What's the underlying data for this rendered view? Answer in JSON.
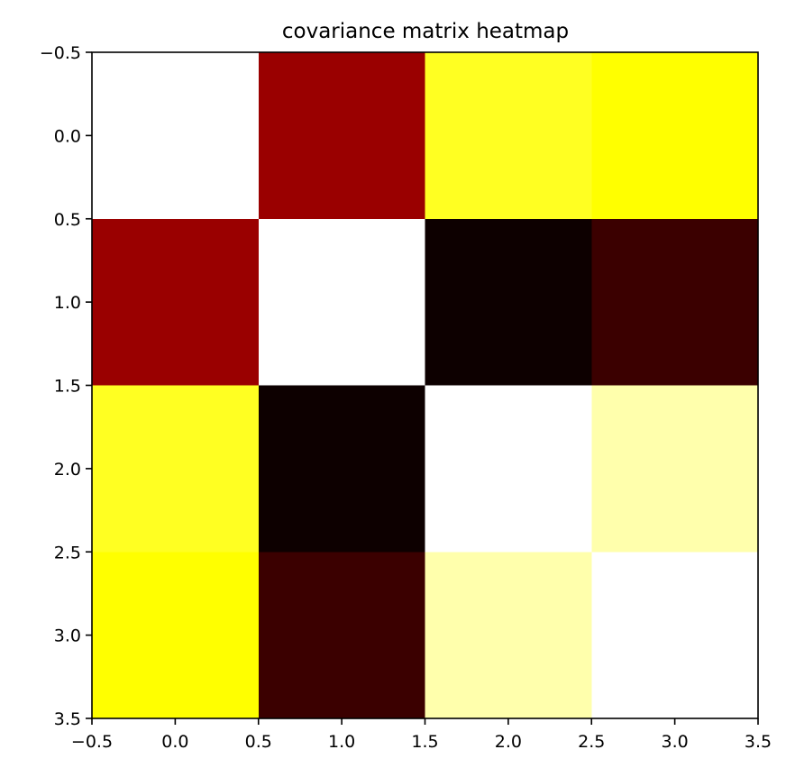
{
  "chart_data": {
    "type": "heatmap",
    "title": "covariance matrix heatmap",
    "xlabel": "",
    "ylabel": "",
    "colormap": "hot",
    "xlim": [
      -0.5,
      3.5
    ],
    "ylim": [
      3.5,
      -0.5
    ],
    "x_ticks": [
      "−0.5",
      "0.0",
      "0.5",
      "1.0",
      "1.5",
      "2.0",
      "2.5",
      "3.0",
      "3.5"
    ],
    "y_ticks": [
      "−0.5",
      "0.0",
      "0.5",
      "1.0",
      "1.5",
      "2.0",
      "2.5",
      "3.0",
      "3.5"
    ],
    "grid": false,
    "rows": [
      {
        "row": 0,
        "values": [
          1.0,
          0.25,
          0.7,
          0.68
        ]
      },
      {
        "row": 1,
        "values": [
          0.25,
          1.0,
          0.02,
          0.09
        ]
      },
      {
        "row": 2,
        "values": [
          0.7,
          0.02,
          1.0,
          0.85
        ]
      },
      {
        "row": 3,
        "values": [
          0.68,
          0.09,
          0.85,
          1.0
        ]
      }
    ],
    "cell_colors": [
      [
        "#ffffff",
        "#9a0000",
        "#ffff22",
        "#ffff00"
      ],
      [
        "#9a0000",
        "#ffffff",
        "#0d0000",
        "#3b0000"
      ],
      [
        "#ffff22",
        "#0d0000",
        "#ffffff",
        "#ffffac"
      ],
      [
        "#ffff00",
        "#3b0000",
        "#ffffac",
        "#ffffff"
      ]
    ]
  }
}
